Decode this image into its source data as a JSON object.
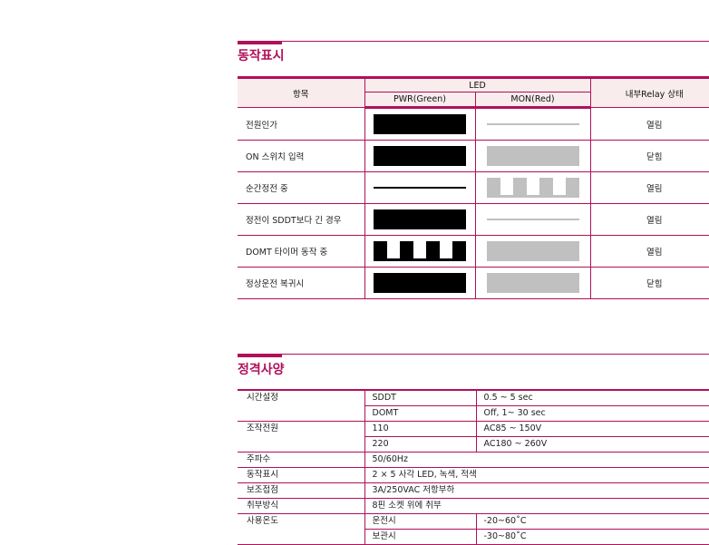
{
  "operation": {
    "title": "동작표시",
    "headers": {
      "item": "항목",
      "led": "LED",
      "pwr": "PWR(Green)",
      "mon": "MON(Red)",
      "relay": "내부Relay 상태"
    },
    "colors": {
      "accent": "#b0105a",
      "header_bg": "#f8ecec",
      "led_on": "#000000",
      "led_off": "#c0c0c0"
    },
    "rows": [
      {
        "label": "전원인가",
        "pwr": "on",
        "mon": "off-line",
        "relay": "열림"
      },
      {
        "label": "ON 스위치 입력",
        "pwr": "on",
        "mon": "off-block",
        "relay": "닫힘"
      },
      {
        "label": "순간정전 중",
        "pwr": "on-line",
        "mon": "off-pulse",
        "relay": "열림"
      },
      {
        "label": "정전이 SDDT보다 긴 경우",
        "pwr": "on",
        "mon": "off-line",
        "relay": "열림"
      },
      {
        "label": "DOMT 타이머 동작 중",
        "pwr": "on-pulse",
        "mon": "off-block",
        "relay": "열림"
      },
      {
        "label": "정상운전 복귀시",
        "pwr": "on",
        "mon": "off-block",
        "relay": "닫힘"
      }
    ]
  },
  "specs": {
    "title": "정격사양",
    "rows": [
      {
        "name": "시간설정",
        "subs": [
          {
            "k": "SDDT",
            "v": "0.5 ~ 5 sec"
          },
          {
            "k": "DOMT",
            "v": "Off, 1~ 30 sec"
          }
        ]
      },
      {
        "name": "조작전원",
        "subs": [
          {
            "k": "110",
            "v": "AC85 ~ 150V"
          },
          {
            "k": "220",
            "v": "AC180 ~ 260V"
          }
        ]
      },
      {
        "name": "주파수",
        "value": "50/60Hz"
      },
      {
        "name": "동작표시",
        "value": "2 × 5 사각 LED, 녹색, 적색"
      },
      {
        "name": "보조접점",
        "value": "3A/250VAC 저항부하"
      },
      {
        "name": "취부방식",
        "value": "8핀 소켓 위에 취부"
      },
      {
        "name": "사용온도",
        "subs": [
          {
            "k": "운전시",
            "v": "-20~60˚C"
          },
          {
            "k": "보관시",
            "v": "-30~80˚C"
          }
        ]
      }
    ]
  }
}
